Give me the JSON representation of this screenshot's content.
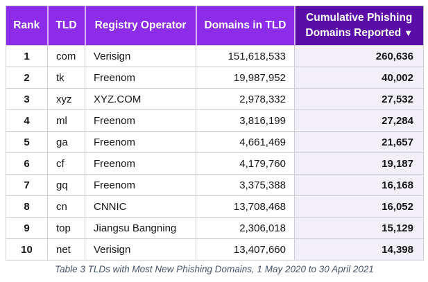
{
  "colors": {
    "header_purple": "#8c2be8",
    "header_dark_purple": "#5a0ca6",
    "phish_col_bg": "#f3eff9",
    "grid_line": "#cfcfcf",
    "caption_text": "#44546a",
    "header_text": "#ffffff",
    "body_text": "#151515"
  },
  "table": {
    "headers": [
      {
        "label": "Rank"
      },
      {
        "label": "TLD"
      },
      {
        "label": "Registry Operator"
      },
      {
        "label": "Domains in TLD"
      },
      {
        "label": "Cumulative Phishing Domains Reported",
        "sort_icon": "▼",
        "sort_order": "descending"
      }
    ],
    "rows": [
      {
        "rank": "1",
        "tld": "com",
        "registry": "Verisign",
        "domains": "151,618,533",
        "phishing": "260,636"
      },
      {
        "rank": "2",
        "tld": "tk",
        "registry": "Freenom",
        "domains": "19,987,952",
        "phishing": "40,002"
      },
      {
        "rank": "3",
        "tld": "xyz",
        "registry": "XYZ.COM",
        "domains": "2,978,332",
        "phishing": "27,532"
      },
      {
        "rank": "4",
        "tld": "ml",
        "registry": "Freenom",
        "domains": "3,816,199",
        "phishing": "27,284"
      },
      {
        "rank": "5",
        "tld": "ga",
        "registry": "Freenom",
        "domains": "4,661,469",
        "phishing": "21,657"
      },
      {
        "rank": "6",
        "tld": "cf",
        "registry": "Freenom",
        "domains": "4,179,760",
        "phishing": "19,187"
      },
      {
        "rank": "7",
        "tld": "gq",
        "registry": "Freenom",
        "domains": "3,375,388",
        "phishing": "16,168"
      },
      {
        "rank": "8",
        "tld": "cn",
        "registry": "CNNIC",
        "domains": "13,708,468",
        "phishing": "16,052"
      },
      {
        "rank": "9",
        "tld": "top",
        "registry": "Jiangsu Bangning",
        "domains": "2,306,018",
        "phishing": "15,129"
      },
      {
        "rank": "10",
        "tld": "net",
        "registry": "Verisign",
        "domains": "13,407,660",
        "phishing": "14,398"
      }
    ],
    "caption": "Table 3 TLDs with Most New Phishing Domains, 1 May 2020 to 30 April 2021"
  },
  "chart_data": {
    "type": "table",
    "title": "Table 3 TLDs with Most New Phishing Domains, 1 May 2020 to 30 April 2021",
    "columns": [
      "Rank",
      "TLD",
      "Registry Operator",
      "Domains in TLD",
      "Cumulative Phishing Domains Reported"
    ],
    "rows": [
      [
        1,
        "com",
        "Verisign",
        151618533,
        260636
      ],
      [
        2,
        "tk",
        "Freenom",
        19987952,
        40002
      ],
      [
        3,
        "xyz",
        "XYZ.COM",
        2978332,
        27532
      ],
      [
        4,
        "ml",
        "Freenom",
        3816199,
        27284
      ],
      [
        5,
        "ga",
        "Freenom",
        4661469,
        21657
      ],
      [
        6,
        "cf",
        "Freenom",
        4179760,
        19187
      ],
      [
        7,
        "gq",
        "Freenom",
        3375388,
        16168
      ],
      [
        8,
        "cn",
        "CNNIC",
        13708468,
        16052
      ],
      [
        9,
        "top",
        "Jiangsu Bangning",
        2306018,
        15129
      ],
      [
        10,
        "net",
        "Verisign",
        13407660,
        14398
      ]
    ],
    "sort": {
      "column": "Cumulative Phishing Domains Reported",
      "order": "descending"
    },
    "legend_position": "none",
    "grid": true
  }
}
